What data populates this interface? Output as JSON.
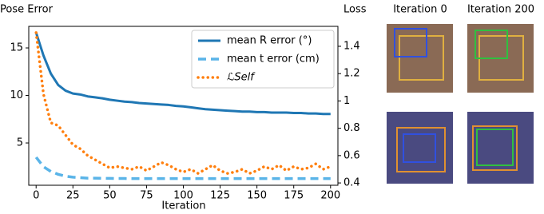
{
  "chart_data": {
    "type": "line",
    "y_label": "Pose Error",
    "y2_label": "Loss",
    "x_label": "Iteration",
    "x": [
      0,
      5,
      10,
      15,
      20,
      25,
      30,
      35,
      40,
      45,
      50,
      55,
      60,
      65,
      70,
      75,
      80,
      85,
      90,
      95,
      100,
      105,
      110,
      115,
      120,
      125,
      130,
      135,
      140,
      145,
      150,
      155,
      160,
      165,
      170,
      175,
      180,
      185,
      190,
      195,
      200
    ],
    "series": [
      {
        "name": "mean R error (°)",
        "color": "#1f77b4",
        "style": "solid",
        "values": [
          16.6,
          14.2,
          12.3,
          11.1,
          10.5,
          10.2,
          10.1,
          9.9,
          9.8,
          9.7,
          9.55,
          9.45,
          9.35,
          9.3,
          9.2,
          9.15,
          9.1,
          9.05,
          9.0,
          8.9,
          8.85,
          8.75,
          8.65,
          8.55,
          8.5,
          8.45,
          8.4,
          8.35,
          8.3,
          8.3,
          8.25,
          8.25,
          8.2,
          8.2,
          8.2,
          8.15,
          8.15,
          8.1,
          8.1,
          8.05,
          8.05
        ]
      },
      {
        "name": "mean t error (cm)",
        "color": "#5ab4e8",
        "style": "dashed",
        "values": [
          3.5,
          2.5,
          2.0,
          1.7,
          1.5,
          1.4,
          1.35,
          1.3,
          1.3,
          1.28,
          1.27,
          1.26,
          1.26,
          1.25,
          1.25,
          1.25,
          1.25,
          1.25,
          1.25,
          1.25,
          1.25,
          1.25,
          1.25,
          1.25,
          1.25,
          1.25,
          1.25,
          1.25,
          1.25,
          1.25,
          1.25,
          1.25,
          1.25,
          1.25,
          1.25,
          1.25,
          1.25,
          1.25,
          1.25,
          1.25,
          1.25
        ]
      },
      {
        "name": "ℒSelf",
        "color": "#ff7f0e",
        "style": "dotted",
        "axis": "y2",
        "values": [
          1.5,
          1.05,
          0.84,
          0.82,
          0.75,
          0.68,
          0.65,
          0.6,
          0.57,
          0.54,
          0.51,
          0.52,
          0.51,
          0.5,
          0.52,
          0.49,
          0.52,
          0.55,
          0.53,
          0.5,
          0.48,
          0.5,
          0.47,
          0.5,
          0.53,
          0.49,
          0.47,
          0.48,
          0.5,
          0.47,
          0.49,
          0.52,
          0.5,
          0.53,
          0.49,
          0.52,
          0.5,
          0.51,
          0.54,
          0.5,
          0.52
        ]
      }
    ],
    "xlim": [
      -5,
      205
    ],
    "xticks": [
      0,
      25,
      50,
      75,
      100,
      125,
      150,
      175,
      200
    ],
    "ylim": [
      0.55,
      17.27
    ],
    "yticks": [
      5,
      10,
      15
    ],
    "y2lim": [
      0.383,
      1.546
    ],
    "y2ticks": [
      0.4,
      0.6,
      0.8,
      1.0,
      1.2,
      1.4
    ],
    "legend": "upper-right",
    "grid": false
  },
  "images": {
    "titles": [
      "Iteration 0",
      "Iteration 200"
    ]
  }
}
